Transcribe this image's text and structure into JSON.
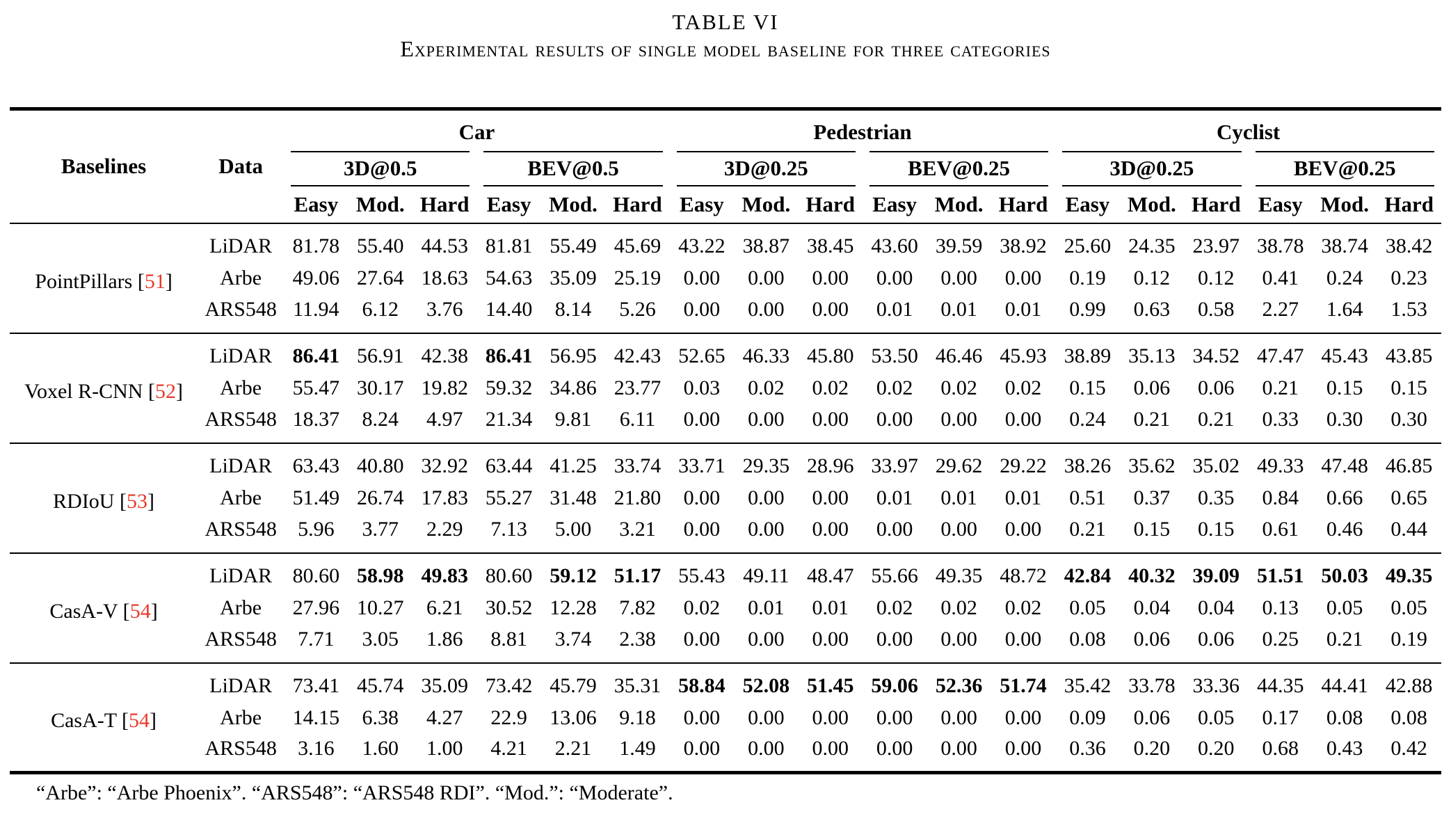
{
  "title": "TABLE VI",
  "caption": "Experimental results of single model baseline for three categories",
  "header": {
    "baselines_label": "Baselines",
    "data_label": "Data",
    "categories": [
      {
        "label": "Car",
        "metrics": [
          "3D@0.5",
          "BEV@0.5"
        ]
      },
      {
        "label": "Pedestrian",
        "metrics": [
          "3D@0.25",
          "BEV@0.25"
        ]
      },
      {
        "label": "Cyclist",
        "metrics": [
          "3D@0.25",
          "BEV@0.25"
        ]
      }
    ],
    "difficulty": [
      "Easy",
      "Mod.",
      "Hard"
    ]
  },
  "cite_brackets": [
    "[",
    "]"
  ],
  "colors": {
    "citation": "#e83a2a"
  },
  "groups": [
    {
      "baseline": "PointPillars",
      "cite": "51",
      "rows": [
        {
          "data": "LiDAR",
          "values": [
            "81.78",
            "55.40",
            "44.53",
            "81.81",
            "55.49",
            "45.69",
            "43.22",
            "38.87",
            "38.45",
            "43.60",
            "39.59",
            "38.92",
            "25.60",
            "24.35",
            "23.97",
            "38.78",
            "38.74",
            "38.42"
          ],
          "bold": []
        },
        {
          "data": "Arbe",
          "values": [
            "49.06",
            "27.64",
            "18.63",
            "54.63",
            "35.09",
            "25.19",
            "0.00",
            "0.00",
            "0.00",
            "0.00",
            "0.00",
            "0.00",
            "0.19",
            "0.12",
            "0.12",
            "0.41",
            "0.24",
            "0.23"
          ],
          "bold": []
        },
        {
          "data": "ARS548",
          "values": [
            "11.94",
            "6.12",
            "3.76",
            "14.40",
            "8.14",
            "5.26",
            "0.00",
            "0.00",
            "0.00",
            "0.01",
            "0.01",
            "0.01",
            "0.99",
            "0.63",
            "0.58",
            "2.27",
            "1.64",
            "1.53"
          ],
          "bold": []
        }
      ]
    },
    {
      "baseline": "Voxel R-CNN",
      "cite": "52",
      "rows": [
        {
          "data": "LiDAR",
          "values": [
            "86.41",
            "56.91",
            "42.38",
            "86.41",
            "56.95",
            "42.43",
            "52.65",
            "46.33",
            "45.80",
            "53.50",
            "46.46",
            "45.93",
            "38.89",
            "35.13",
            "34.52",
            "47.47",
            "45.43",
            "43.85"
          ],
          "bold": [
            0,
            3
          ]
        },
        {
          "data": "Arbe",
          "values": [
            "55.47",
            "30.17",
            "19.82",
            "59.32",
            "34.86",
            "23.77",
            "0.03",
            "0.02",
            "0.02",
            "0.02",
            "0.02",
            "0.02",
            "0.15",
            "0.06",
            "0.06",
            "0.21",
            "0.15",
            "0.15"
          ],
          "bold": []
        },
        {
          "data": "ARS548",
          "values": [
            "18.37",
            "8.24",
            "4.97",
            "21.34",
            "9.81",
            "6.11",
            "0.00",
            "0.00",
            "0.00",
            "0.00",
            "0.00",
            "0.00",
            "0.24",
            "0.21",
            "0.21",
            "0.33",
            "0.30",
            "0.30"
          ],
          "bold": []
        }
      ]
    },
    {
      "baseline": "RDIoU",
      "cite": "53",
      "rows": [
        {
          "data": "LiDAR",
          "values": [
            "63.43",
            "40.80",
            "32.92",
            "63.44",
            "41.25",
            "33.74",
            "33.71",
            "29.35",
            "28.96",
            "33.97",
            "29.62",
            "29.22",
            "38.26",
            "35.62",
            "35.02",
            "49.33",
            "47.48",
            "46.85"
          ],
          "bold": []
        },
        {
          "data": "Arbe",
          "values": [
            "51.49",
            "26.74",
            "17.83",
            "55.27",
            "31.48",
            "21.80",
            "0.00",
            "0.00",
            "0.00",
            "0.01",
            "0.01",
            "0.01",
            "0.51",
            "0.37",
            "0.35",
            "0.84",
            "0.66",
            "0.65"
          ],
          "bold": []
        },
        {
          "data": "ARS548",
          "values": [
            "5.96",
            "3.77",
            "2.29",
            "7.13",
            "5.00",
            "3.21",
            "0.00",
            "0.00",
            "0.00",
            "0.00",
            "0.00",
            "0.00",
            "0.21",
            "0.15",
            "0.15",
            "0.61",
            "0.46",
            "0.44"
          ],
          "bold": []
        }
      ]
    },
    {
      "baseline": "CasA-V",
      "cite": "54",
      "rows": [
        {
          "data": "LiDAR",
          "values": [
            "80.60",
            "58.98",
            "49.83",
            "80.60",
            "59.12",
            "51.17",
            "55.43",
            "49.11",
            "48.47",
            "55.66",
            "49.35",
            "48.72",
            "42.84",
            "40.32",
            "39.09",
            "51.51",
            "50.03",
            "49.35"
          ],
          "bold": [
            1,
            2,
            4,
            5,
            12,
            13,
            14,
            15,
            16,
            17
          ]
        },
        {
          "data": "Arbe",
          "values": [
            "27.96",
            "10.27",
            "6.21",
            "30.52",
            "12.28",
            "7.82",
            "0.02",
            "0.01",
            "0.01",
            "0.02",
            "0.02",
            "0.02",
            "0.05",
            "0.04",
            "0.04",
            "0.13",
            "0.05",
            "0.05"
          ],
          "bold": []
        },
        {
          "data": "ARS548",
          "values": [
            "7.71",
            "3.05",
            "1.86",
            "8.81",
            "3.74",
            "2.38",
            "0.00",
            "0.00",
            "0.00",
            "0.00",
            "0.00",
            "0.00",
            "0.08",
            "0.06",
            "0.06",
            "0.25",
            "0.21",
            "0.19"
          ],
          "bold": []
        }
      ]
    },
    {
      "baseline": "CasA-T",
      "cite": "54",
      "rows": [
        {
          "data": "LiDAR",
          "values": [
            "73.41",
            "45.74",
            "35.09",
            "73.42",
            "45.79",
            "35.31",
            "58.84",
            "52.08",
            "51.45",
            "59.06",
            "52.36",
            "51.74",
            "35.42",
            "33.78",
            "33.36",
            "44.35",
            "44.41",
            "42.88"
          ],
          "bold": [
            6,
            7,
            8,
            9,
            10,
            11
          ]
        },
        {
          "data": "Arbe",
          "values": [
            "14.15",
            "6.38",
            "4.27",
            "22.9",
            "13.06",
            "9.18",
            "0.00",
            "0.00",
            "0.00",
            "0.00",
            "0.00",
            "0.00",
            "0.09",
            "0.06",
            "0.05",
            "0.17",
            "0.08",
            "0.08"
          ],
          "bold": []
        },
        {
          "data": "ARS548",
          "values": [
            "3.16",
            "1.60",
            "1.00",
            "4.21",
            "2.21",
            "1.49",
            "0.00",
            "0.00",
            "0.00",
            "0.00",
            "0.00",
            "0.00",
            "0.36",
            "0.20",
            "0.20",
            "0.68",
            "0.43",
            "0.42"
          ],
          "bold": []
        }
      ]
    }
  ],
  "footnote": "“Arbe”: “Arbe Phoenix”. “ARS548”: “ARS548 RDI”. “Mod.”: “Moderate”."
}
